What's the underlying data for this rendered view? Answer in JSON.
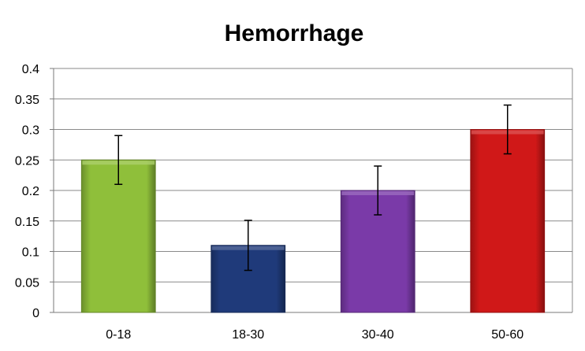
{
  "chart_data": {
    "type": "bar",
    "title": "Hemorrhage",
    "xlabel": "",
    "ylabel": "",
    "categories": [
      "0-18",
      "18-30",
      "30-40",
      "50-60"
    ],
    "values": [
      0.25,
      0.11,
      0.2,
      0.3
    ],
    "error": [
      0.04,
      0.041,
      0.04,
      0.04
    ],
    "ylim": [
      0,
      0.4
    ],
    "yticks": [
      0,
      0.05,
      0.1,
      0.15,
      0.2,
      0.25,
      0.3,
      0.35,
      0.4
    ],
    "ytick_labels": [
      "0",
      "0.05",
      "0.1",
      "0.15",
      "0.2",
      "0.25",
      "0.3",
      "0.35",
      "0.4"
    ],
    "grid": true,
    "legend": "none",
    "colors": [
      "#8fbf3a",
      "#1f3a7a",
      "#7a3aa8",
      "#d01818"
    ]
  }
}
